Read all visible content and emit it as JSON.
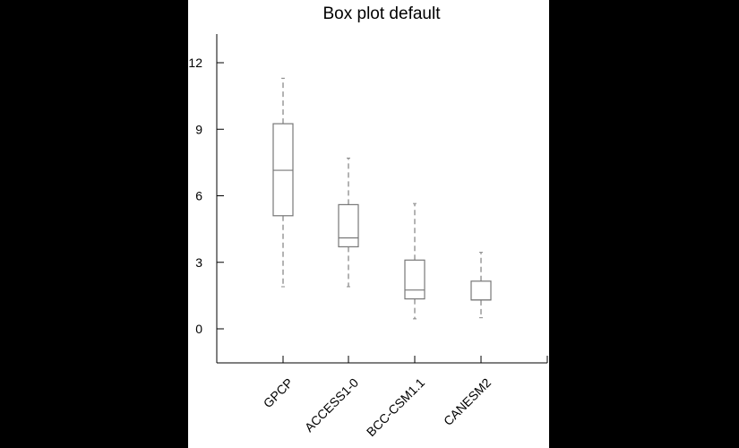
{
  "chart_data": {
    "type": "box",
    "title": "Box plot default",
    "xlabel": "",
    "ylabel": "",
    "ylim": [
      -1.6,
      13.2
    ],
    "yticks": [
      0,
      3,
      6,
      9,
      12
    ],
    "grid": false,
    "categories": [
      "GPCP",
      "ACCESS1-0",
      "BCC-CSM1.1",
      "CANESM2"
    ],
    "series": [
      {
        "category": "GPCP",
        "whisker_low": 1.9,
        "q1": 5.1,
        "median": 7.15,
        "q3": 9.25,
        "whisker_high": 11.3
      },
      {
        "category": "ACCESS1-0",
        "whisker_low": 1.9,
        "q1": 3.7,
        "median": 4.1,
        "q3": 5.6,
        "whisker_high": 7.7
      },
      {
        "category": "BCC-CSM1.1",
        "whisker_low": 0.45,
        "q1": 1.35,
        "median": 1.75,
        "q3": 3.1,
        "whisker_high": 5.65
      },
      {
        "category": "CANESM2",
        "whisker_low": 0.5,
        "q1": 1.3,
        "median": 1.3,
        "q3": 2.15,
        "whisker_high": 3.45
      }
    ],
    "colors": {
      "box": "#777777",
      "whisker": "#8a8a8a",
      "axis": "#000000"
    }
  }
}
